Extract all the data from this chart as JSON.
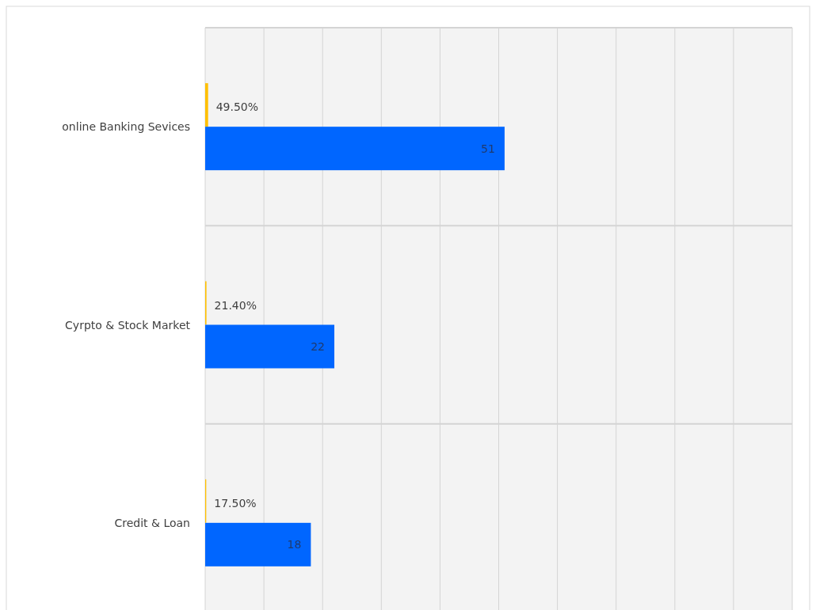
{
  "chart_data": {
    "type": "bar",
    "orientation": "horizontal",
    "categories": [
      "online Banking Sevices",
      "Cyrpto & Stock Market",
      "Credit & Loan"
    ],
    "series": [
      {
        "color": "#ffc000",
        "values": [
          0.495,
          0.214,
          0.175
        ],
        "value_labels": [
          "49.50%",
          "21.40%",
          "17.50%"
        ]
      },
      {
        "color": "#0066ff",
        "values": [
          51,
          22,
          18
        ],
        "value_labels": [
          "51",
          "22",
          "18"
        ]
      }
    ],
    "xlim": [
      0,
      100
    ],
    "xticks": [
      {
        "value": 0,
        "label": null
      },
      {
        "value": 10,
        "label": null
      },
      {
        "value": 20,
        "label": null
      },
      {
        "value": 30,
        "label": null
      },
      {
        "value": 40,
        "label": null
      },
      {
        "value": 50,
        "label": null
      },
      {
        "value": 60,
        "label": null
      },
      {
        "value": 70,
        "label": null
      },
      {
        "value": 80,
        "label": null
      },
      {
        "value": 90,
        "label": null
      },
      {
        "value": 100,
        "label": null
      }
    ],
    "tick_labels": "y",
    "grid": true
  }
}
